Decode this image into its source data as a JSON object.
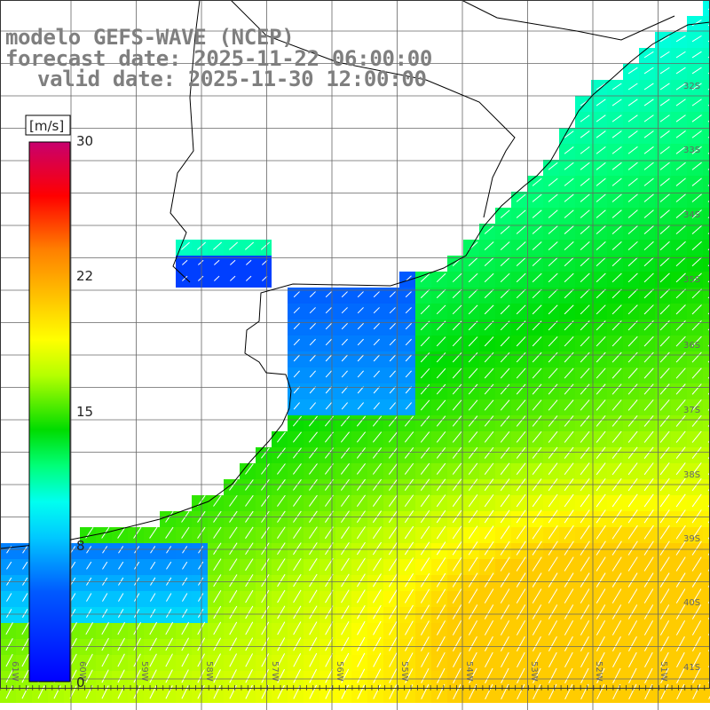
{
  "title": {
    "model": "modelo GEFS-WAVE (NCEP)",
    "forecast": "forecast date: 2025-11-22 06:00:00",
    "valid": "valid date: 2025-11-30 12:00:00"
  },
  "colorbar": {
    "unit": "[m/s]",
    "ticks": [
      "30",
      "22",
      "15",
      "8",
      "0"
    ],
    "range": [
      0,
      30
    ],
    "colors": [
      "#0000ff",
      "#00a0ff",
      "#00ffff",
      "#00ff60",
      "#00dd00",
      "#ffff00",
      "#ff8000",
      "#ff0000",
      "#cc0066"
    ]
  },
  "axes": {
    "lat_labels": [
      "32S",
      "33S",
      "34S",
      "35S",
      "36S",
      "37S",
      "38S",
      "39S",
      "40S",
      "41S"
    ],
    "lon_labels": [
      "61W",
      "60W",
      "59W",
      "58W",
      "57W",
      "56W",
      "55W",
      "54W",
      "53W",
      "52W",
      "51W"
    ]
  },
  "colors": {
    "land": "#ffffff",
    "coast": "#000000",
    "grid": "#666666",
    "arrow": "#ffffff"
  },
  "legend_placement": "left",
  "field": "wind speed and direction"
}
